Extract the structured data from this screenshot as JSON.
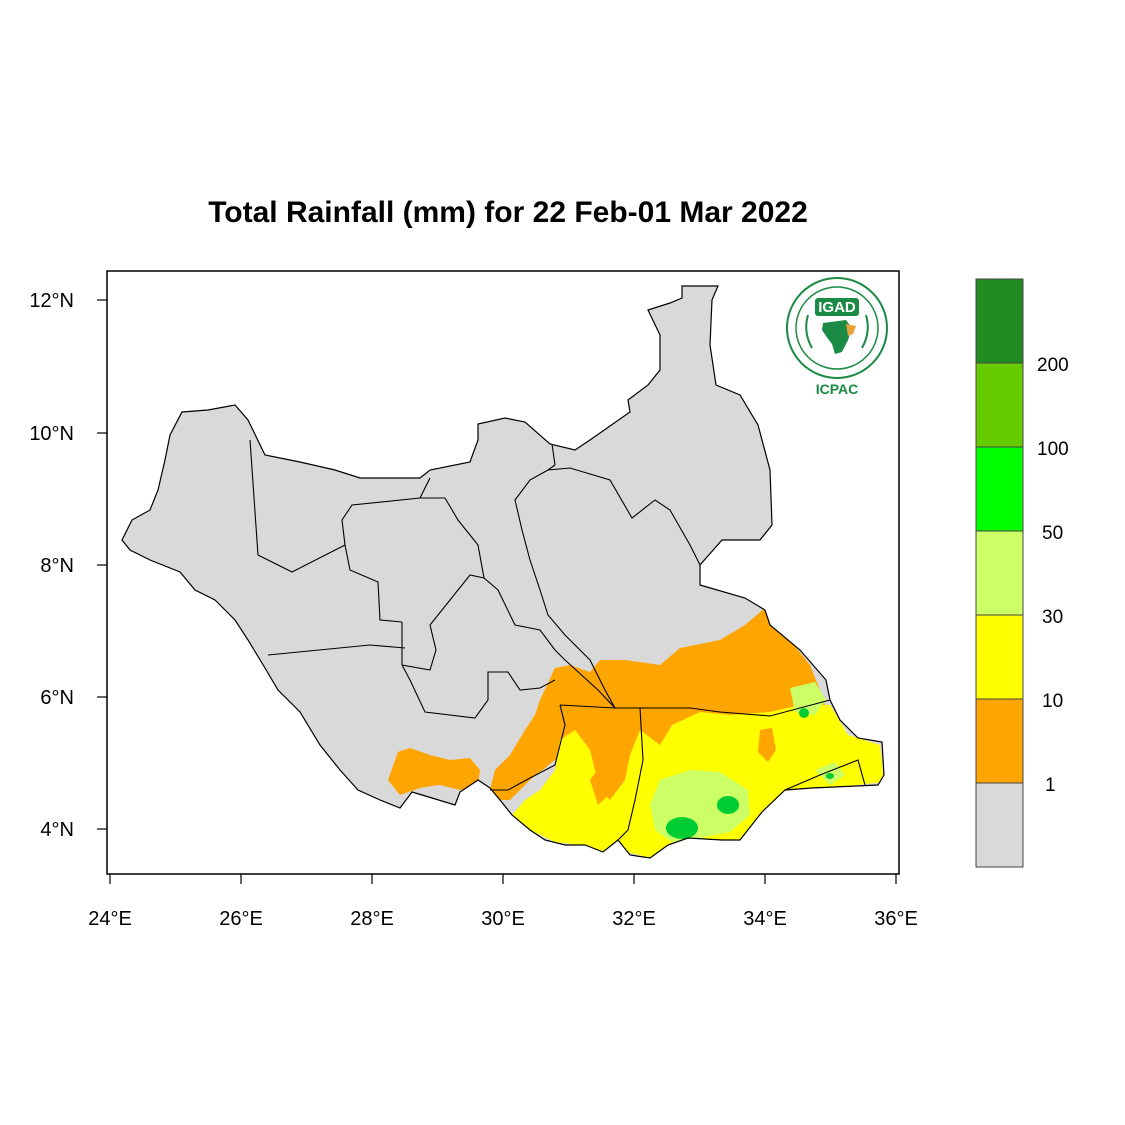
{
  "title": "Total Rainfall (mm) for 22 Feb-01 Mar 2022",
  "axes": {
    "x_ticks": [
      "24°E",
      "26°E",
      "28°E",
      "30°E",
      "32°E",
      "34°E",
      "36°E"
    ],
    "y_ticks": [
      "12°N",
      "10°N",
      "8°N",
      "6°N",
      "4°N"
    ]
  },
  "legend": {
    "labels": [
      "1",
      "10",
      "30",
      "50",
      "100",
      "200"
    ],
    "colors": [
      "#d9d9d9",
      "#ffa500",
      "#ffff00",
      "#ccff66",
      "#00ff00",
      "#66cc00",
      "#228b22"
    ]
  },
  "logo": {
    "top_text": "IGAD",
    "bottom_text": "ICPAC",
    "ring_color": "#1a8a45"
  },
  "colors": {
    "no_rain": "#d9d9d9",
    "band_1_10": "#ffa500",
    "band_10_30": "#ffff00",
    "band_30_50": "#ccff66",
    "band_50_100": "#00ff00"
  }
}
